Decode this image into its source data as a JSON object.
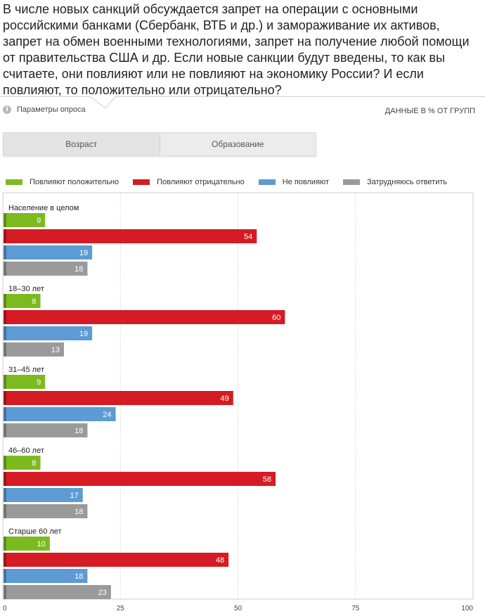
{
  "question": "В числе новых санкций обсуждается запрет на операции с основными российскими банками (Сбербанк, ВТБ и др.) и замораживание их активов, запрет на обмен военными технологиями, запрет на получение любой помощи от правительства США и др. Если новые санкции будут введены, то как вы считаете, они повлияют или не повлияют на экономику России? И если повлияют, то положительно или отрицательно?",
  "params_label": "Параметры опроса",
  "units_label": "ДАННЫЕ В % ОТ ГРУПП",
  "tabs": [
    {
      "label": "Возраст",
      "active": true
    },
    {
      "label": "Образование",
      "active": false
    }
  ],
  "colors": {
    "positive": "#7cbb1f",
    "negative": "#d51b23",
    "none": "#5c9bd3",
    "unsure": "#9a9a9a"
  },
  "chart_data": {
    "type": "bar",
    "orientation": "horizontal",
    "categories": [
      "Население в целом",
      "18–30 лет",
      "31–45 лет",
      "46–60 лет",
      "Старше 60 лет"
    ],
    "series": [
      {
        "name": "Повлияют положительно",
        "color": "#7cbb1f",
        "values": [
          9,
          8,
          9,
          8,
          10
        ]
      },
      {
        "name": "Повлияют отрицательно",
        "color": "#d51b23",
        "values": [
          54,
          60,
          49,
          58,
          48
        ]
      },
      {
        "name": "Не повлияют",
        "color": "#5c9bd3",
        "values": [
          19,
          19,
          24,
          17,
          18
        ]
      },
      {
        "name": "Затрудняюсь ответить",
        "color": "#9a9a9a",
        "values": [
          18,
          13,
          18,
          18,
          23
        ]
      }
    ],
    "xlim": [
      0,
      100
    ],
    "xticks": [
      0,
      25,
      50,
      75,
      100
    ],
    "grid": true,
    "legend": "top-left"
  }
}
